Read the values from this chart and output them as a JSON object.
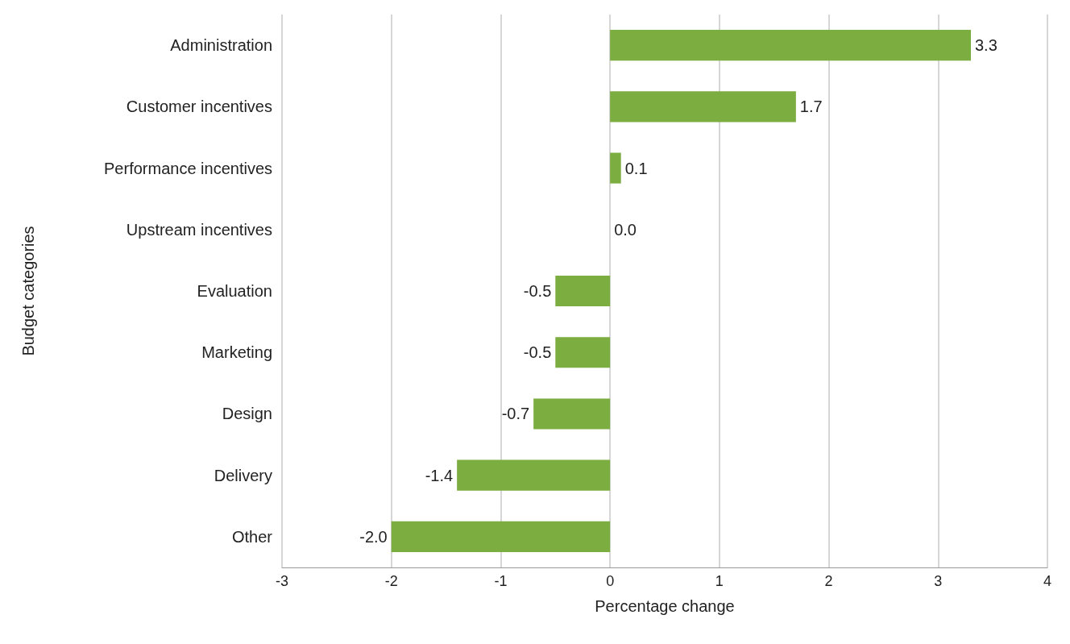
{
  "chart_data": {
    "type": "bar",
    "orientation": "horizontal",
    "xlabel": "Percentage change",
    "ylabel": "Budget categories",
    "categories": [
      "Administration",
      "Customer incentives",
      "Performance incentives",
      "Upstream incentives",
      "Evaluation",
      "Marketing",
      "Design",
      "Delivery",
      "Other"
    ],
    "values": [
      3.3,
      1.7,
      0.1,
      0,
      -0.5,
      -0.5,
      -0.7,
      -1.4,
      -2
    ],
    "value_labels": [
      "3.3",
      "1.7",
      "0.1",
      "0.0",
      "-0.5",
      "-0.5",
      "-0.7",
      "-1.4",
      "-2.0"
    ],
    "color": "#7cad41",
    "xlim": [
      -3,
      4
    ],
    "xticks": [
      -3,
      -2,
      -1,
      0,
      1,
      2,
      3,
      4
    ],
    "grid": "x"
  }
}
